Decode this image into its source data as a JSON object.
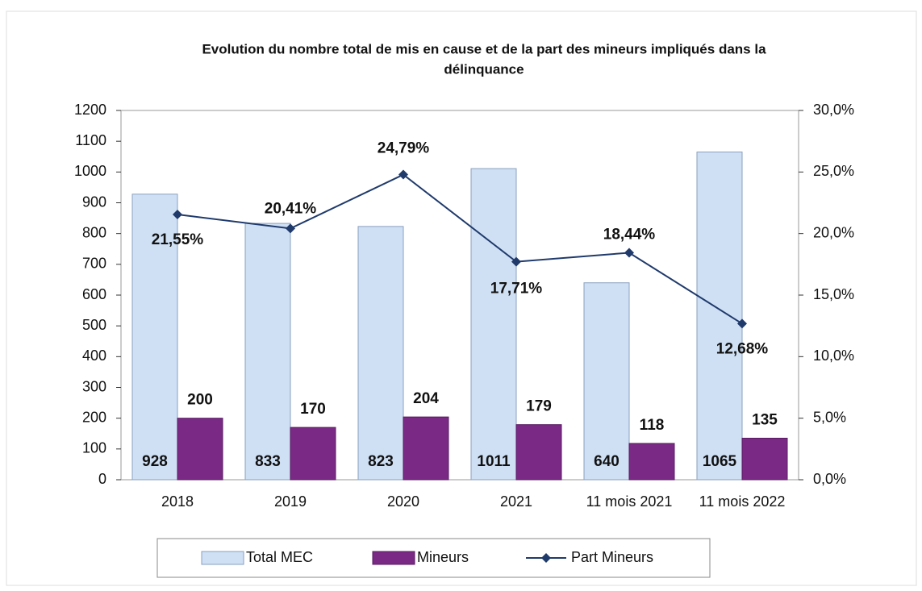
{
  "chart_data": {
    "type": "bar-line",
    "title": "Evolution du nombre total de mis en cause et de la part des mineurs impliqués dans la",
    "subtitle": "délinquance",
    "categories": [
      "2018",
      "2019",
      "2020",
      "2021",
      "11 mois 2021",
      "11 mois 2022"
    ],
    "series": [
      {
        "name": "Total MEC",
        "color": "#cfe0f5",
        "values": [
          928,
          833,
          823,
          1011,
          640,
          1065
        ]
      },
      {
        "name": "Mineurs",
        "color": "#7a2a85",
        "values": [
          200,
          170,
          204,
          179,
          118,
          135
        ]
      },
      {
        "name": "Part Mineurs",
        "color": "#1f3a6b",
        "axis": "y2",
        "values": [
          21.55,
          20.41,
          24.79,
          17.71,
          18.44,
          12.68
        ],
        "value_labels": [
          "21,55%",
          "20,41%",
          "24,79%",
          "17,71%",
          "18,44%",
          "12,68%"
        ]
      }
    ],
    "ylim": [
      0,
      1200
    ],
    "yticks": [
      0,
      100,
      200,
      300,
      400,
      500,
      600,
      700,
      800,
      900,
      1000,
      1100,
      1200
    ],
    "y2lim": [
      0,
      30
    ],
    "y2ticks": [
      {
        "value": 0,
        "label": "0,0%"
      },
      {
        "value": 5,
        "label": "5,0%"
      },
      {
        "value": 10,
        "label": "10,0%"
      },
      {
        "value": 15,
        "label": "15,0%"
      },
      {
        "value": 20,
        "label": "20,0%"
      },
      {
        "value": 25,
        "label": "25,0%"
      },
      {
        "value": 30,
        "label": "30,0%"
      }
    ],
    "legend": "bottom"
  }
}
